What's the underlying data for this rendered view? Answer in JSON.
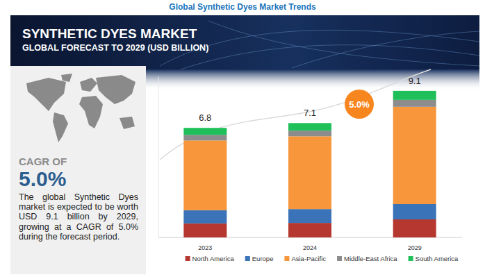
{
  "page": {
    "heading": "Global Synthetic Dyes Market Trends",
    "cagr_label": "CAGR OF",
    "cagr_value": "5.0%",
    "summary": "The global Synthetic Dyes market is expected to be worth USD 9.1 billion by 2029, growing at a CAGR of 5.0% during the forecast period."
  },
  "chart_data": {
    "type": "bar",
    "stacked": true,
    "title": "SYNTHETIC DYES MARKET",
    "subtitle": "GLOBAL FORECAST TO 2029 (USD BILLION)",
    "categories": [
      "2023",
      "2024",
      "2029"
    ],
    "series": [
      {
        "name": "North America",
        "color": "#b5372f",
        "values": [
          0.87,
          0.9,
          1.12
        ]
      },
      {
        "name": "Europe",
        "color": "#3a73b8",
        "values": [
          0.82,
          0.86,
          0.95
        ]
      },
      {
        "name": "Asia-Pacific",
        "color": "#f7963b",
        "values": [
          4.33,
          4.52,
          6.04
        ]
      },
      {
        "name": "Middle-East Africa",
        "color": "#8c8c8c",
        "values": [
          0.35,
          0.35,
          0.43
        ]
      },
      {
        "name": "South America",
        "color": "#1fbf5a",
        "values": [
          0.43,
          0.47,
          0.56
        ]
      }
    ],
    "totals": [
      6.8,
      7.1,
      9.1
    ],
    "annotations": [
      "5.0%"
    ],
    "ylim": [
      0,
      10
    ],
    "tick_labels": "x",
    "legend": "bottom",
    "data_labels": false
  }
}
